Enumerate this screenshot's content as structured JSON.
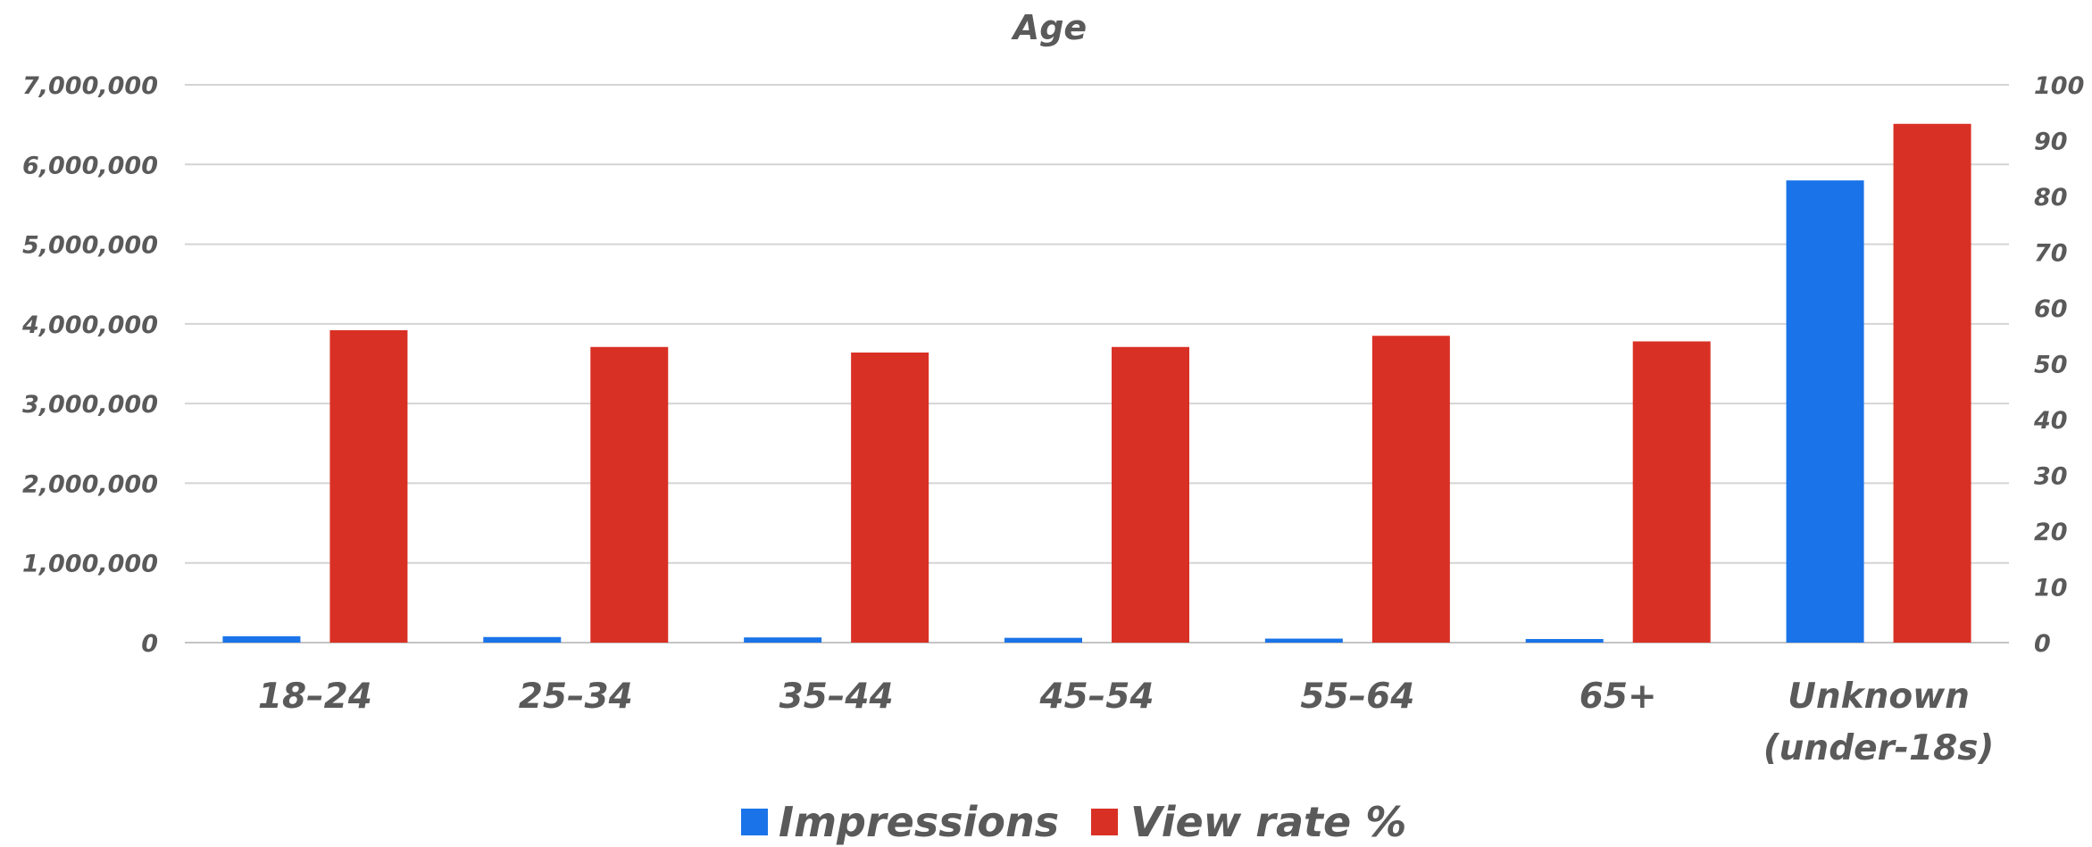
{
  "chart_data": {
    "type": "bar",
    "title": "Age",
    "categories": [
      [
        "18–24"
      ],
      [
        "25–34"
      ],
      [
        "35–44"
      ],
      [
        "45–54"
      ],
      [
        "55–64"
      ],
      [
        "65+"
      ],
      [
        "Unknown",
        "(under-18s)"
      ]
    ],
    "series": [
      {
        "name": "Impressions",
        "axis": "left",
        "color": "#1a73e8",
        "values": [
          80000,
          70000,
          65000,
          60000,
          50000,
          45000,
          5800000
        ]
      },
      {
        "name": "View rate %",
        "axis": "right",
        "color": "#d93025",
        "values": [
          56,
          53,
          52,
          53,
          55,
          54,
          93
        ]
      }
    ],
    "y_left": {
      "min": 0,
      "max": 7000000,
      "step": 1000000,
      "tick_labels": [
        "0",
        "1,000,000",
        "2,000,000",
        "3,000,000",
        "4,000,000",
        "5,000,000",
        "6,000,000",
        "7,000,000"
      ]
    },
    "y_right": {
      "min": 0,
      "max": 100,
      "step": 10,
      "tick_labels": [
        "0",
        "10",
        "20",
        "30",
        "40",
        "50",
        "60",
        "70",
        "80",
        "90",
        "100"
      ]
    },
    "grid": true,
    "legend": "bottom"
  }
}
